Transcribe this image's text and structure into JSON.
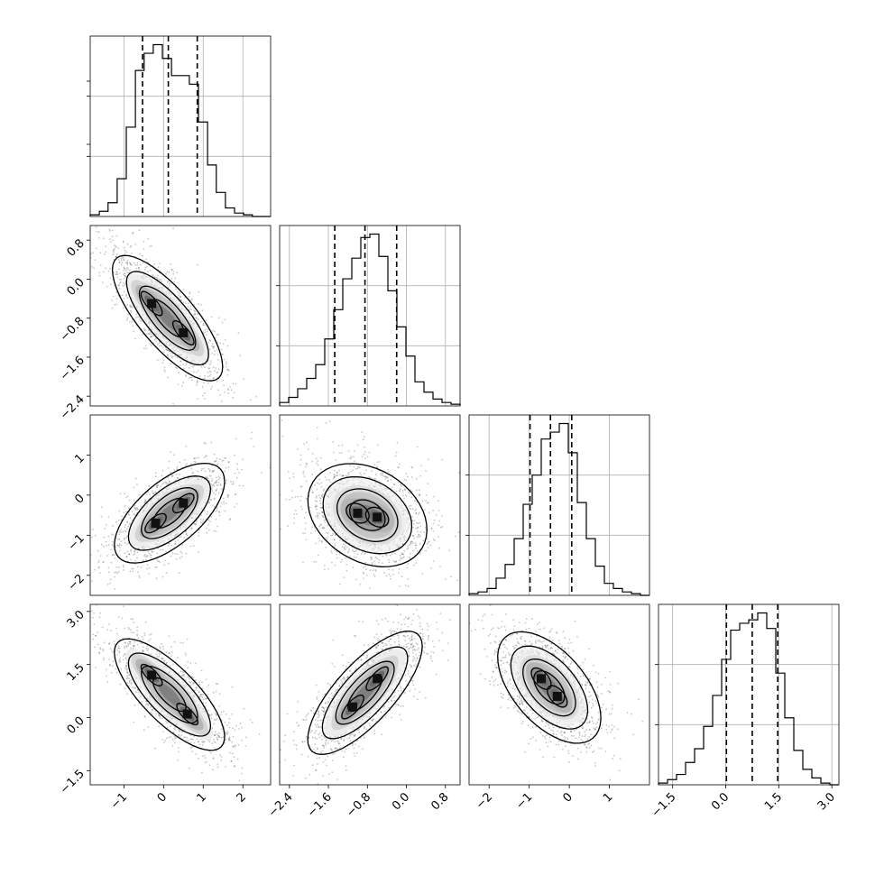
{
  "chart_data": {
    "type": "corner",
    "n_params": 4,
    "param_ranges": [
      [
        -1.85,
        2.7
      ],
      [
        -2.6,
        1.1
      ],
      [
        -2.5,
        2.0
      ],
      [
        -1.9,
        3.2
      ]
    ],
    "axis_ticks": [
      {
        "values": [
          -1,
          0,
          1,
          2
        ],
        "labels": [
          "−1",
          "0",
          "1",
          "2"
        ]
      },
      {
        "values": [
          -2.4,
          -1.6,
          -0.8,
          0.0,
          0.8
        ],
        "labels": [
          "−2.4",
          "−1.6",
          "−0.8",
          "0.0",
          "0.8"
        ]
      },
      {
        "values": [
          -2,
          -1,
          0,
          1
        ],
        "labels": [
          "−2",
          "−1",
          "0",
          "1"
        ]
      },
      {
        "values": [
          -1.5,
          0.0,
          1.5,
          3.0
        ],
        "labels": [
          "−1.5",
          "0.0",
          "1.5",
          "3.0"
        ]
      }
    ],
    "y_axis_ticks": [
      null,
      {
        "values": [
          -2.4,
          -1.6,
          -0.8,
          0.0,
          0.8
        ],
        "labels": [
          "−2.4",
          "−1.6",
          "−0.8",
          "0.0",
          "0.8"
        ]
      },
      {
        "values": [
          -2,
          -1,
          0,
          1
        ],
        "labels": [
          "−2",
          "−1",
          "0",
          "1"
        ]
      },
      {
        "values": [
          -1.5,
          0.0,
          1.5,
          3.0
        ],
        "labels": [
          "−1.5",
          "0.0",
          "1.5",
          "3.0"
        ]
      }
    ],
    "marginals": [
      {
        "bin_edges": [
          -1.85,
          -1.62,
          -1.4,
          -1.17,
          -0.94,
          -0.71,
          -0.49,
          -0.26,
          -0.03,
          0.2,
          0.42,
          0.65,
          0.88,
          1.11,
          1.33,
          1.56,
          1.79,
          2.02,
          2.24,
          2.47,
          2.7
        ],
        "counts": [
          0.01,
          0.03,
          0.08,
          0.22,
          0.52,
          0.85,
          0.95,
          1.0,
          0.92,
          0.82,
          0.82,
          0.77,
          0.55,
          0.3,
          0.14,
          0.05,
          0.02,
          0.01,
          0.0,
          0.0
        ],
        "quantiles": [
          -0.53,
          0.12,
          0.85
        ]
      },
      {
        "bin_edges": [
          -2.6,
          -2.415,
          -2.23,
          -2.045,
          -1.86,
          -1.675,
          -1.49,
          -1.305,
          -1.12,
          -0.935,
          -0.75,
          -0.565,
          -0.38,
          -0.195,
          -0.01,
          0.175,
          0.36,
          0.545,
          0.73,
          0.915,
          1.1
        ],
        "counts": [
          0.02,
          0.05,
          0.1,
          0.16,
          0.24,
          0.39,
          0.56,
          0.74,
          0.86,
          0.98,
          1.0,
          0.87,
          0.67,
          0.46,
          0.29,
          0.14,
          0.08,
          0.04,
          0.02,
          0.01
        ],
        "quantiles": [
          -1.47,
          -0.85,
          -0.2
        ]
      },
      {
        "bin_edges": [
          -2.5,
          -2.275,
          -2.05,
          -1.825,
          -1.6,
          -1.375,
          -1.15,
          -0.925,
          -0.7,
          -0.475,
          -0.25,
          -0.025,
          0.2,
          0.425,
          0.65,
          0.875,
          1.1,
          1.325,
          1.55,
          1.775,
          2.0
        ],
        "counts": [
          0.01,
          0.02,
          0.04,
          0.1,
          0.18,
          0.33,
          0.53,
          0.7,
          0.91,
          0.95,
          1.0,
          0.83,
          0.54,
          0.33,
          0.17,
          0.07,
          0.04,
          0.02,
          0.01,
          0.0
        ],
        "quantiles": [
          -0.98,
          -0.47,
          0.06
        ]
      },
      {
        "bin_edges": [
          -1.9,
          -1.645,
          -1.39,
          -1.135,
          -0.88,
          -0.625,
          -0.37,
          -0.115,
          0.14,
          0.395,
          0.65,
          0.905,
          1.16,
          1.415,
          1.67,
          1.925,
          2.18,
          2.435,
          2.69,
          2.945,
          3.2
        ],
        "counts": [
          0.01,
          0.03,
          0.06,
          0.13,
          0.21,
          0.34,
          0.52,
          0.73,
          0.9,
          0.94,
          0.96,
          1.0,
          0.91,
          0.65,
          0.39,
          0.2,
          0.09,
          0.04,
          0.01,
          0.0
        ],
        "quantiles": [
          0.02,
          0.75,
          1.47
        ]
      }
    ],
    "pair_panels": [
      {
        "x": 0,
        "y": 1,
        "modes": [
          [
            -0.3,
            -0.5,
            0.45,
            0.4
          ],
          [
            0.5,
            -1.1,
            0.4,
            0.4
          ]
        ],
        "cov": [
          [
            0.35,
            -0.25
          ],
          [
            -0.25,
            0.3
          ]
        ]
      },
      {
        "x": 0,
        "y": 2,
        "modes": [
          [
            -0.2,
            -0.7,
            0.4,
            0.35
          ],
          [
            0.5,
            -0.2,
            0.4,
            0.35
          ]
        ],
        "cov": [
          [
            0.35,
            0.2
          ],
          [
            0.2,
            0.28
          ]
        ]
      },
      {
        "x": 1,
        "y": 2,
        "modes": [
          [
            -1.0,
            -0.45,
            0.35,
            0.35
          ],
          [
            -0.6,
            -0.55,
            0.35,
            0.35
          ]
        ],
        "cov": [
          [
            0.27,
            -0.08
          ],
          [
            -0.08,
            0.3
          ]
        ]
      },
      {
        "x": 0,
        "y": 3,
        "modes": [
          [
            -0.3,
            1.2,
            0.4,
            0.4
          ],
          [
            0.6,
            0.1,
            0.4,
            0.4
          ]
        ],
        "cov": [
          [
            0.35,
            -0.3
          ],
          [
            -0.3,
            0.45
          ]
        ]
      },
      {
        "x": 1,
        "y": 3,
        "modes": [
          [
            -1.1,
            0.3,
            0.35,
            0.45
          ],
          [
            -0.6,
            1.1,
            0.35,
            0.45
          ]
        ],
        "cov": [
          [
            0.25,
            0.28
          ],
          [
            0.28,
            0.55
          ]
        ]
      },
      {
        "x": 2,
        "y": 3,
        "modes": [
          [
            -0.7,
            1.1,
            0.4,
            0.45
          ],
          [
            -0.3,
            0.6,
            0.4,
            0.45
          ]
        ],
        "cov": [
          [
            0.3,
            -0.2
          ],
          [
            -0.2,
            0.45
          ]
        ]
      }
    ],
    "grid": true,
    "quantile_lines": "dashed"
  }
}
